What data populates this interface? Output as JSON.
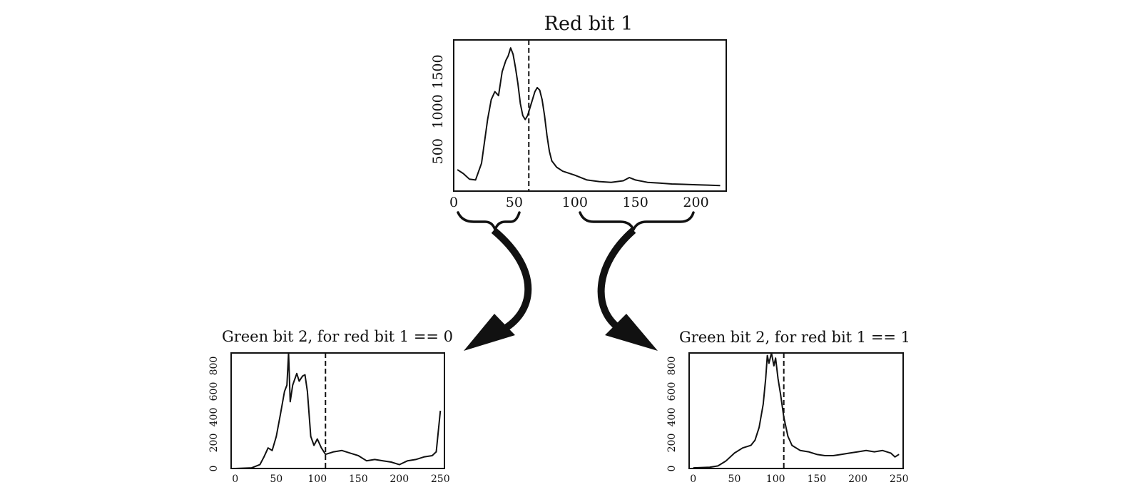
{
  "chart_data": [
    {
      "id": "red",
      "type": "line",
      "title": "Red bit 1",
      "xlim": [
        0,
        225
      ],
      "ylim": [
        0,
        1900
      ],
      "x_ticks": [
        0,
        50,
        100,
        150,
        200
      ],
      "y_ticks": [
        500,
        1000,
        1500
      ],
      "split_x": 62,
      "x": [
        3,
        8,
        13,
        18,
        23,
        28,
        31,
        34,
        37,
        40,
        43,
        45,
        47,
        49,
        51,
        53,
        55,
        57,
        59,
        61,
        63,
        65,
        67,
        69,
        71,
        73,
        75,
        77,
        79,
        81,
        85,
        90,
        100,
        110,
        120,
        130,
        140,
        145,
        150,
        160,
        170,
        180,
        190,
        200,
        210,
        220
      ],
      "values": [
        270,
        220,
        150,
        140,
        350,
        900,
        1150,
        1250,
        1200,
        1500,
        1640,
        1700,
        1800,
        1720,
        1550,
        1350,
        1100,
        950,
        900,
        950,
        1050,
        1150,
        1250,
        1300,
        1270,
        1150,
        950,
        700,
        500,
        380,
        300,
        250,
        200,
        140,
        120,
        110,
        130,
        170,
        140,
        110,
        100,
        90,
        85,
        80,
        75,
        70
      ]
    },
    {
      "id": "green0",
      "type": "line",
      "title": "Green bit 2, for red bit 1 == 0",
      "xlim": [
        -5,
        255
      ],
      "ylim": [
        0,
        900
      ],
      "x_ticks": [
        0,
        50,
        100,
        150,
        200,
        250
      ],
      "y_ticks": [
        0,
        200,
        400,
        600,
        800
      ],
      "split_x": 110,
      "x": [
        0,
        20,
        30,
        35,
        40,
        45,
        50,
        55,
        60,
        63,
        65,
        67,
        70,
        75,
        78,
        82,
        85,
        88,
        92,
        96,
        100,
        105,
        110,
        120,
        130,
        140,
        145,
        150,
        160,
        170,
        180,
        190,
        200,
        210,
        220,
        230,
        240,
        245,
        250
      ],
      "values": [
        0,
        5,
        30,
        90,
        160,
        140,
        250,
        420,
        600,
        650,
        900,
        520,
        650,
        740,
        680,
        720,
        730,
        600,
        250,
        180,
        230,
        160,
        110,
        130,
        140,
        120,
        110,
        100,
        60,
        70,
        60,
        50,
        30,
        60,
        70,
        90,
        100,
        130,
        450
      ]
    },
    {
      "id": "green1",
      "type": "line",
      "title": "Green bit 2, for red bit 1 == 1",
      "xlim": [
        -5,
        255
      ],
      "ylim": [
        0,
        900
      ],
      "x_ticks": [
        0,
        50,
        100,
        150,
        200,
        250
      ],
      "y_ticks": [
        0,
        200,
        400,
        600,
        800
      ],
      "split_x": 110,
      "x": [
        0,
        20,
        30,
        40,
        50,
        60,
        70,
        75,
        80,
        85,
        88,
        90,
        92,
        95,
        98,
        100,
        103,
        106,
        110,
        115,
        120,
        130,
        140,
        150,
        160,
        170,
        180,
        190,
        200,
        210,
        220,
        230,
        240,
        245,
        250
      ],
      "values": [
        5,
        10,
        20,
        60,
        120,
        160,
        180,
        220,
        320,
        500,
        700,
        880,
        820,
        900,
        800,
        860,
        700,
        580,
        400,
        250,
        180,
        140,
        130,
        110,
        100,
        100,
        110,
        120,
        130,
        140,
        130,
        140,
        120,
        90,
        110
      ]
    }
  ]
}
